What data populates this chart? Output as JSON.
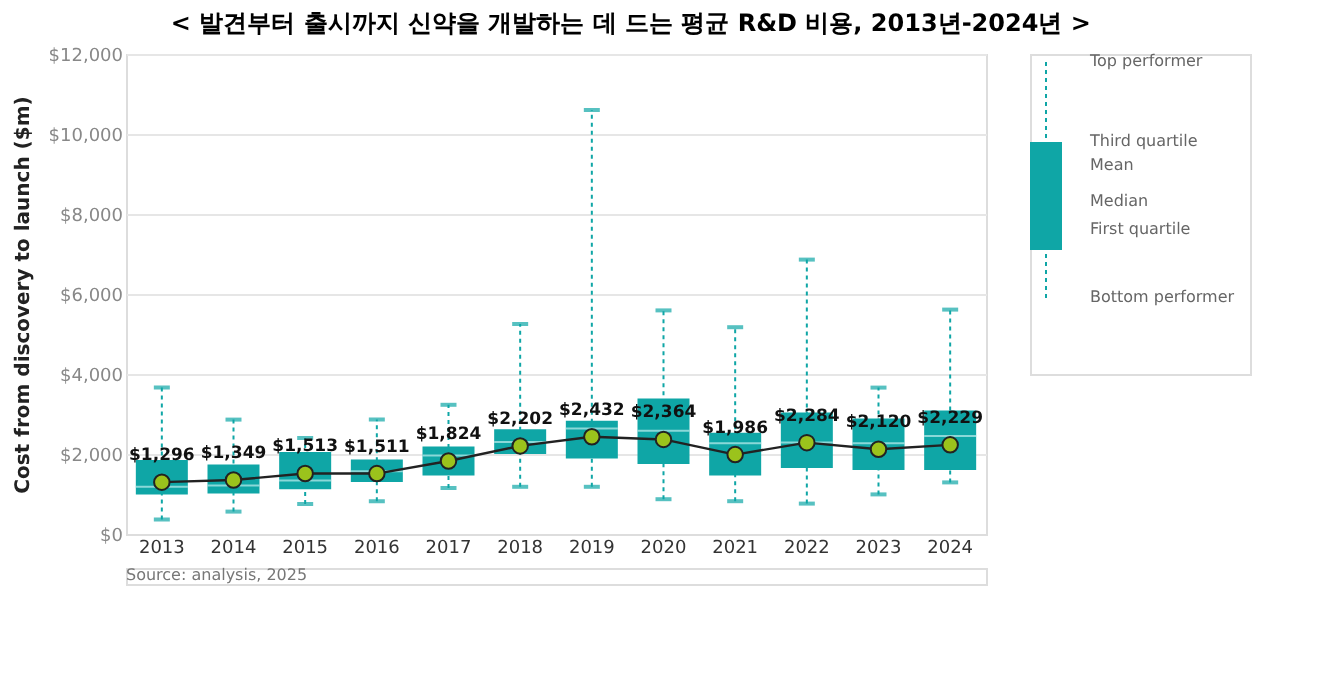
{
  "chart_data": {
    "type": "box",
    "title": "< 발견부터 출시까지 신약을 개발하는 데 드는 평균 R&D 비용, 2013년-2024년 >",
    "ylabel": "Cost from discovery to launch ($m)",
    "categories": [
      "2013",
      "2014",
      "2015",
      "2016",
      "2017",
      "2018",
      "2019",
      "2020",
      "2021",
      "2022",
      "2023",
      "2024"
    ],
    "ylim": [
      0,
      12000
    ],
    "yticks": [
      {
        "value": 0,
        "label": "$0"
      },
      {
        "value": 2000,
        "label": "$2,000"
      },
      {
        "value": 4000,
        "label": "$4,000"
      },
      {
        "value": 6000,
        "label": "$6,000"
      },
      {
        "value": 8000,
        "label": "$8,000"
      },
      {
        "value": 10000,
        "label": "$10,000"
      },
      {
        "value": 12000,
        "label": "$12,000"
      }
    ],
    "grid": "y",
    "series": [
      {
        "type": "box",
        "color": "#0fa6a6",
        "boxes": [
          {
            "low": 360,
            "q1": 990,
            "median": 1180,
            "q3": 1850,
            "high": 3660
          },
          {
            "low": 560,
            "q1": 1010,
            "median": 1210,
            "q3": 1740,
            "high": 2860
          },
          {
            "low": 750,
            "q1": 1120,
            "median": 1340,
            "q3": 2050,
            "high": 2400
          },
          {
            "low": 820,
            "q1": 1300,
            "median": 1570,
            "q3": 1860,
            "high": 2860
          },
          {
            "low": 1150,
            "q1": 1460,
            "median": 1960,
            "q3": 2190,
            "high": 3230
          },
          {
            "low": 1180,
            "q1": 2000,
            "median": 2300,
            "q3": 2620,
            "high": 5250
          },
          {
            "low": 1180,
            "q1": 1890,
            "median": 2640,
            "q3": 2830,
            "high": 10600
          },
          {
            "low": 870,
            "q1": 1750,
            "median": 2580,
            "q3": 3390,
            "high": 5590
          },
          {
            "low": 820,
            "q1": 1460,
            "median": 2270,
            "q3": 2530,
            "high": 5170
          },
          {
            "low": 760,
            "q1": 1650,
            "median": 2290,
            "q3": 3040,
            "high": 6860
          },
          {
            "low": 990,
            "q1": 1600,
            "median": 2270,
            "q3": 2890,
            "high": 3660
          },
          {
            "low": 1290,
            "q1": 1600,
            "median": 2450,
            "q3": 3090,
            "high": 5610
          }
        ]
      },
      {
        "type": "line",
        "color": "#222222",
        "marker": "circle",
        "values": [
          1296,
          1349,
          1513,
          1511,
          1824,
          2202,
          2432,
          2364,
          1986,
          2284,
          2120,
          2229
        ],
        "value_labels": [
          "$1,296",
          "$1,349",
          "$1,513",
          "$1,511",
          "$1,824",
          "$2,202",
          "$2,432",
          "$2,364",
          "$1,986",
          "$2,284",
          "$2,120",
          "$2,229"
        ]
      }
    ],
    "annotations": [
      "Top performer",
      "Third quartile",
      "Mean",
      "Median",
      "First quartile",
      "Bottom performer",
      "Source: analysis, 2025"
    ]
  }
}
